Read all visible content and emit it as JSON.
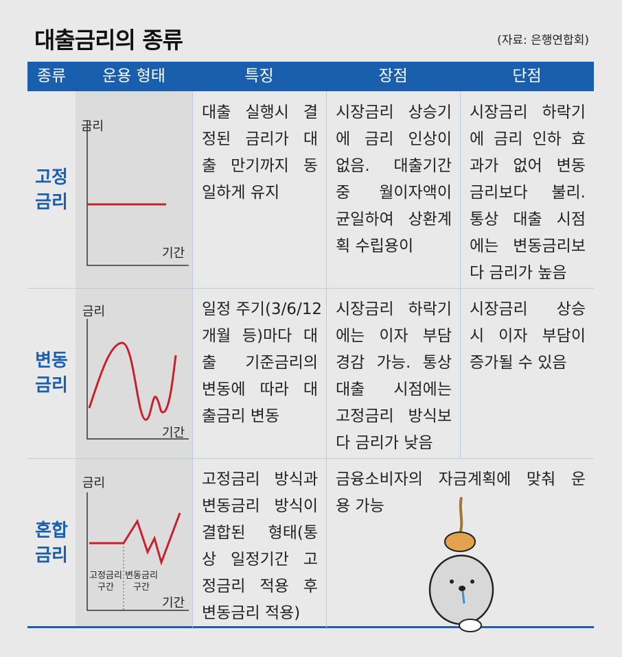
{
  "header": {
    "title": "대출금리의 종류",
    "source": "(자료: 은행연합회)"
  },
  "table": {
    "columns": [
      "종류",
      "운용 형태",
      "특징",
      "장점",
      "단점"
    ],
    "rows": [
      {
        "type": [
          "고정",
          "금리"
        ],
        "chart": {
          "y_label": "금리",
          "x_label": "기간"
        },
        "feature": [
          "대출 실행시 결",
          "정된 금리가 대",
          "출 만기까지 동",
          "일하게 유지"
        ],
        "pros": [
          "시장금리 상승기",
          "에 금리 인상이",
          "없음. 대출기간",
          "중 월이자액이",
          "균일하여 상환계",
          "획 수립용이"
        ],
        "cons": [
          "시장금리 하락기",
          "에 금리 인하 효",
          "과가 없어 변동",
          "금리보다 불리.",
          "통상 대출 시점",
          "에는 변동금리보",
          "다 금리가 높음"
        ]
      },
      {
        "type": [
          "변동",
          "금리"
        ],
        "chart": {
          "y_label": "금리",
          "x_label": "기간"
        },
        "feature": [
          "일정 주기(3/6/12",
          "개월 등)마다 대",
          "출 기준금리의",
          "변동에 따라 대",
          "출금리 변동"
        ],
        "pros": [
          "시장금리 하락기",
          "에는 이자 부담",
          "경감 가능. 통상",
          "대출 시점에는",
          "고정금리 방식보",
          "다 금리가 낮음"
        ],
        "cons": [
          "시장금리 상승",
          "시 이자 부담이",
          "증가될 수 있음"
        ]
      },
      {
        "type": [
          "혼합",
          "금리"
        ],
        "chart": {
          "y_label": "금리",
          "x_label": "기간",
          "segments": [
            [
              "고정금리",
              "구간"
            ],
            [
              "변동금리",
              "구간"
            ]
          ]
        },
        "feature": [
          "고정금리 방식과",
          "변동금리 방식이",
          "결합된 형태(통",
          "상 일정기간 고",
          "정금리 적용 후",
          "변동금리 적용)"
        ],
        "merged": [
          "금융소비자의 자금계획에 맞춰 운",
          "용 가능"
        ]
      }
    ]
  }
}
